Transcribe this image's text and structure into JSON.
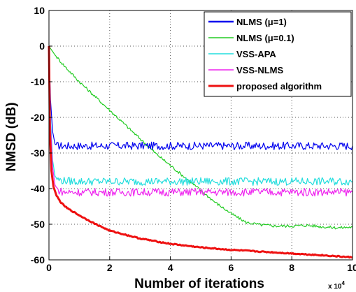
{
  "chart_data": {
    "type": "line",
    "xlabel": "Number of iterations",
    "ylabel": "NMSD (dB)",
    "x_multiplier_label": "x 10",
    "x_multiplier_exp": "4",
    "xlim": [
      0,
      10
    ],
    "ylim": [
      -60,
      10
    ],
    "x_ticks": [
      0,
      2,
      4,
      6,
      8,
      10
    ],
    "x_tick_labels": [
      "0",
      "2",
      "4",
      "6",
      "8",
      "10"
    ],
    "y_ticks": [
      -60,
      -50,
      -40,
      -30,
      -20,
      -10,
      0,
      10
    ],
    "y_tick_labels": [
      "-60",
      "-50",
      "-40",
      "-30",
      "-20",
      "-10",
      "0",
      "10"
    ],
    "grid": true,
    "legend_position": "top-right",
    "series": [
      {
        "name": "NLMS (μ=1)",
        "color": "#0000ee",
        "x": [
          0,
          0.05,
          0.12,
          0.2,
          0.3,
          0.5,
          1,
          2,
          3,
          4,
          5,
          6,
          7,
          8,
          9,
          10
        ],
        "y": [
          0,
          -15,
          -24,
          -27.5,
          -28,
          -28,
          -28,
          -28,
          -28,
          -28,
          -28,
          -28,
          -28,
          -28,
          -28,
          -28
        ]
      },
      {
        "name": "NLMS (μ=0.1)",
        "color": "#22cc22",
        "x": [
          0,
          0.2,
          0.5,
          1,
          1.5,
          2,
          2.5,
          3,
          3.5,
          4,
          4.5,
          5,
          5.5,
          6,
          6.5,
          7,
          7.5,
          8,
          8.5,
          9,
          9.5,
          10
        ],
        "y": [
          0,
          -2.5,
          -5.5,
          -10,
          -14,
          -18,
          -22,
          -26,
          -30,
          -33.5,
          -37,
          -40.5,
          -44,
          -47,
          -49.5,
          -50.2,
          -50.5,
          -50.5,
          -50.3,
          -50.7,
          -51,
          -50.8
        ]
      },
      {
        "name": "VSS-APA",
        "color": "#22dddd",
        "x": [
          0,
          0.05,
          0.12,
          0.2,
          0.3,
          0.5,
          1,
          2,
          3,
          4,
          5,
          6,
          7,
          8,
          9,
          10
        ],
        "y": [
          0,
          -20,
          -32,
          -36.5,
          -37.5,
          -37.8,
          -38,
          -38,
          -38,
          -38,
          -38,
          -38,
          -38,
          -38,
          -38,
          -38
        ]
      },
      {
        "name": "VSS-NLMS",
        "color": "#ee22ee",
        "x": [
          0,
          0.05,
          0.12,
          0.2,
          0.3,
          0.5,
          1,
          2,
          3,
          4,
          5,
          6,
          7,
          8,
          9,
          10
        ],
        "y": [
          0,
          -22,
          -34,
          -39,
          -40.5,
          -41,
          -41,
          -41,
          -41,
          -41,
          -41,
          -41,
          -41,
          -41,
          -41,
          -41
        ]
      },
      {
        "name": "proposed algorithm",
        "color": "#ee1111",
        "x": [
          0,
          0.03,
          0.08,
          0.15,
          0.25,
          0.4,
          0.6,
          0.8,
          1,
          1.5,
          2,
          3,
          4,
          5,
          6,
          7,
          8,
          9,
          10
        ],
        "y": [
          0,
          -24,
          -35,
          -39.5,
          -42,
          -44,
          -45.5,
          -46.5,
          -47.5,
          -49.8,
          -51.8,
          -54,
          -55.5,
          -56.5,
          -57.2,
          -57.7,
          -58.2,
          -58.7,
          -59.3
        ]
      }
    ]
  }
}
